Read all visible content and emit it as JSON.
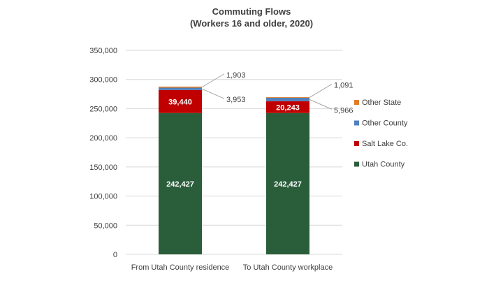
{
  "chart_data": {
    "type": "bar",
    "stacked": true,
    "title": "Commuting Flows",
    "subtitle": "(Workers 16 and older, 2020)",
    "xlabel": "",
    "ylabel": "",
    "categories": [
      "From Utah County residence",
      "To Utah County workplace"
    ],
    "ylim": [
      0,
      350000
    ],
    "yticks": [
      0,
      50000,
      100000,
      150000,
      200000,
      250000,
      300000,
      350000
    ],
    "ytick_labels": [
      "0",
      "50,000",
      "100,000",
      "150,000",
      "200,000",
      "250,000",
      "300,000",
      "350,000"
    ],
    "grid": true,
    "legend_position": "right",
    "series": [
      {
        "name": "Utah County",
        "color": "#2a5e3b",
        "values": [
          242427,
          242427
        ],
        "labels": [
          "242,427",
          "242,427"
        ],
        "label_position": "inside"
      },
      {
        "name": "Salt Lake Co.",
        "color": "#c00000",
        "values": [
          39440,
          20243
        ],
        "labels": [
          "39,440",
          "20,243"
        ],
        "label_position": "inside"
      },
      {
        "name": "Other County",
        "color": "#4f81bd",
        "values": [
          3953,
          5966
        ],
        "labels": [
          "3,953",
          "5,966"
        ],
        "label_position": "outside"
      },
      {
        "name": "Other State",
        "color": "#e07b27",
        "values": [
          1903,
          1091
        ],
        "labels": [
          "1,903",
          "1,091"
        ],
        "label_position": "outside"
      }
    ]
  }
}
